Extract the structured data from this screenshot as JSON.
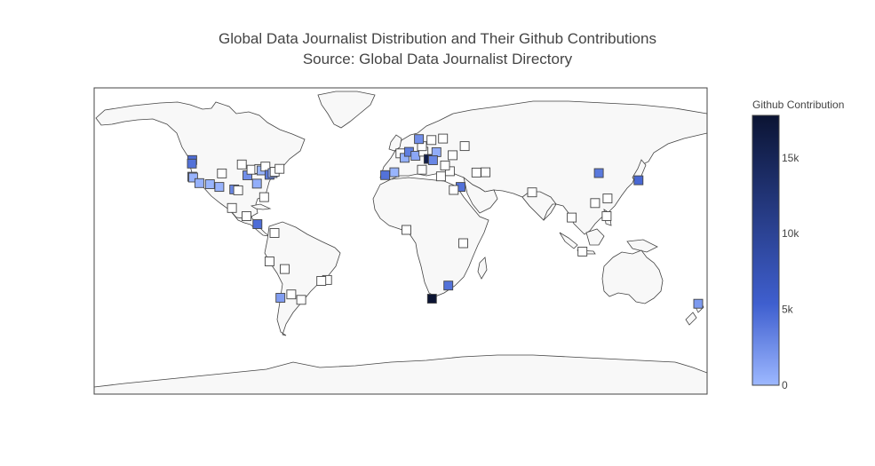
{
  "title": "Global Data Journalist Distribution and Their Github Contributions",
  "subtitle": "Source: Global Data Journalist Directory",
  "colorbar": {
    "title": "Github Contribution",
    "ticks": [
      {
        "label": "0",
        "value": 0
      },
      {
        "label": "5k",
        "value": 5000
      },
      {
        "label": "10k",
        "value": 10000
      },
      {
        "label": "15k",
        "value": 15000
      }
    ],
    "max": 17800,
    "color_low": "#9db8ff",
    "color_mid": "#3f5fcf",
    "color_high": "#0b1433"
  },
  "map": {
    "land_color": "#f8f8f8",
    "coast_color": "#444444",
    "marker_symbol": "square",
    "markers": [
      {
        "lon": -122.4,
        "lat": 47.6,
        "value": 4500
      },
      {
        "lon": -122.6,
        "lat": 45.5,
        "value": 4200
      },
      {
        "lon": -122.4,
        "lat": 37.8,
        "value": 800
      },
      {
        "lon": -121.9,
        "lat": 37.3,
        "value": 300
      },
      {
        "lon": -105.0,
        "lat": 39.7,
        "value": 0
      },
      {
        "lon": -118.2,
        "lat": 34.0,
        "value": 400
      },
      {
        "lon": -112.0,
        "lat": 33.4,
        "value": 200
      },
      {
        "lon": -106.5,
        "lat": 31.8,
        "value": 300
      },
      {
        "lon": -97.7,
        "lat": 30.3,
        "value": 3000
      },
      {
        "lon": -95.4,
        "lat": 29.8,
        "value": 0
      },
      {
        "lon": -93.3,
        "lat": 45.0,
        "value": 0
      },
      {
        "lon": -90.0,
        "lat": 38.6,
        "value": 2500
      },
      {
        "lon": -87.6,
        "lat": 41.9,
        "value": 0
      },
      {
        "lon": -84.4,
        "lat": 33.7,
        "value": 600
      },
      {
        "lon": -83.0,
        "lat": 42.3,
        "value": 0
      },
      {
        "lon": -81.7,
        "lat": 41.5,
        "value": 200
      },
      {
        "lon": -79.4,
        "lat": 43.7,
        "value": 0
      },
      {
        "lon": -77.0,
        "lat": 38.9,
        "value": 3800
      },
      {
        "lon": -75.2,
        "lat": 39.9,
        "value": 500
      },
      {
        "lon": -74.0,
        "lat": 40.7,
        "value": 0
      },
      {
        "lon": -71.1,
        "lat": 42.4,
        "value": 0
      },
      {
        "lon": -80.2,
        "lat": 25.8,
        "value": 0
      },
      {
        "lon": -99.1,
        "lat": 19.4,
        "value": 0
      },
      {
        "lon": -90.5,
        "lat": 14.6,
        "value": 0
      },
      {
        "lon": -84.1,
        "lat": 9.9,
        "value": 4500
      },
      {
        "lon": -74.1,
        "lat": 4.7,
        "value": 0
      },
      {
        "lon": -77.0,
        "lat": -12.0,
        "value": 0
      },
      {
        "lon": -68.1,
        "lat": -16.5,
        "value": 0
      },
      {
        "lon": -43.2,
        "lat": -22.9,
        "value": 0
      },
      {
        "lon": -46.6,
        "lat": -23.5,
        "value": 0
      },
      {
        "lon": -70.6,
        "lat": -33.4,
        "value": 1600
      },
      {
        "lon": -58.4,
        "lat": -34.6,
        "value": 0
      },
      {
        "lon": -64.2,
        "lat": -31.4,
        "value": 0
      },
      {
        "lon": -9.1,
        "lat": 38.7,
        "value": 4200
      },
      {
        "lon": -3.7,
        "lat": 40.4,
        "value": 200
      },
      {
        "lon": -0.1,
        "lat": 51.5,
        "value": 0
      },
      {
        "lon": 2.35,
        "lat": 48.9,
        "value": 500
      },
      {
        "lon": 4.9,
        "lat": 52.4,
        "value": 3500
      },
      {
        "lon": 8.7,
        "lat": 50.1,
        "value": 1000
      },
      {
        "lon": 13.4,
        "lat": 52.5,
        "value": 0
      },
      {
        "lon": 12.5,
        "lat": 55.7,
        "value": 0
      },
      {
        "lon": 10.75,
        "lat": 59.9,
        "value": 2500
      },
      {
        "lon": 18.1,
        "lat": 59.3,
        "value": 0
      },
      {
        "lon": 24.9,
        "lat": 60.2,
        "value": 0
      },
      {
        "lon": 16.4,
        "lat": 48.2,
        "value": 16000
      },
      {
        "lon": 21.0,
        "lat": 52.2,
        "value": 700
      },
      {
        "lon": 12.5,
        "lat": 41.9,
        "value": 0
      },
      {
        "lon": 19.0,
        "lat": 47.5,
        "value": 3000
      },
      {
        "lon": 23.7,
        "lat": 38.0,
        "value": 0
      },
      {
        "lon": 28.9,
        "lat": 41.0,
        "value": 0
      },
      {
        "lon": 26.1,
        "lat": 44.4,
        "value": 0
      },
      {
        "lon": 30.5,
        "lat": 50.4,
        "value": 0
      },
      {
        "lon": 37.6,
        "lat": 55.8,
        "value": 0
      },
      {
        "lon": 35.2,
        "lat": 31.8,
        "value": 4200
      },
      {
        "lon": 31.2,
        "lat": 30.0,
        "value": 0
      },
      {
        "lon": 49.9,
        "lat": 40.4,
        "value": 0
      },
      {
        "lon": 44.5,
        "lat": 40.2,
        "value": 0
      },
      {
        "lon": 3.4,
        "lat": 6.5,
        "value": 0
      },
      {
        "lon": 36.8,
        "lat": -1.3,
        "value": 0
      },
      {
        "lon": 28.0,
        "lat": -26.2,
        "value": 4200
      },
      {
        "lon": 18.4,
        "lat": -33.9,
        "value": 17800
      },
      {
        "lon": 77.2,
        "lat": 28.6,
        "value": 0
      },
      {
        "lon": 100.5,
        "lat": 13.8,
        "value": 0
      },
      {
        "lon": 114.2,
        "lat": 22.3,
        "value": 0
      },
      {
        "lon": 121.0,
        "lat": 14.6,
        "value": 0
      },
      {
        "lon": 106.8,
        "lat": -6.2,
        "value": 0
      },
      {
        "lon": 121.5,
        "lat": 25.0,
        "value": 0
      },
      {
        "lon": 116.4,
        "lat": 39.9,
        "value": 3800
      },
      {
        "lon": 139.7,
        "lat": 35.7,
        "value": 4800
      },
      {
        "lon": 174.8,
        "lat": -36.9,
        "value": 1800
      }
    ]
  }
}
